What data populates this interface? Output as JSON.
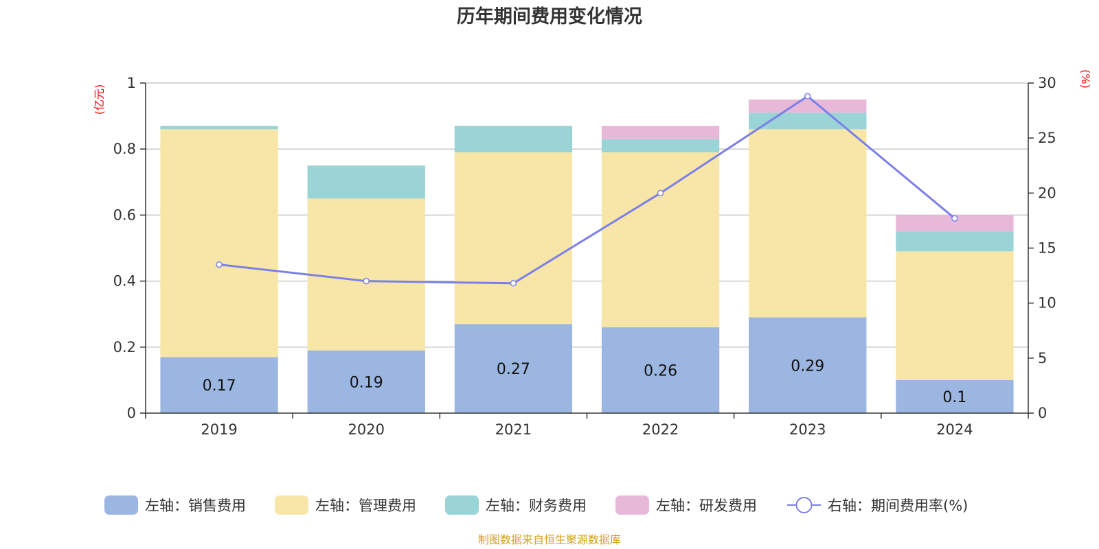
{
  "chart_data": {
    "type": "bar",
    "title": "历年期间费用变化情况",
    "categories": [
      "2019",
      "2020",
      "2021",
      "2022",
      "2023",
      "2024"
    ],
    "y_left": {
      "unit": "(亿元)",
      "ylim": [
        0,
        1
      ],
      "ticks": [
        "0",
        "0.2",
        "0.4",
        "0.6",
        "0.8",
        "1"
      ]
    },
    "y_right": {
      "unit": "(%)",
      "ylim": [
        0,
        30
      ],
      "ticks": [
        "0",
        "5",
        "10",
        "15",
        "20",
        "25",
        "30"
      ]
    },
    "series": [
      {
        "name": "左轴：销售费用",
        "type": "bar",
        "stack": true,
        "axis": "left",
        "color": "#9bb6e0",
        "values": [
          0.17,
          0.19,
          0.27,
          0.26,
          0.29,
          0.1
        ],
        "labels": [
          "0.17",
          "0.19",
          "0.27",
          "0.26",
          "0.29",
          "0.1"
        ]
      },
      {
        "name": "左轴：管理费用",
        "type": "bar",
        "stack": true,
        "axis": "left",
        "color": "#f7e6a8",
        "values": [
          0.69,
          0.46,
          0.52,
          0.53,
          0.57,
          0.39
        ]
      },
      {
        "name": "左轴：财务费用",
        "type": "bar",
        "stack": true,
        "axis": "left",
        "color": "#9ad4d6",
        "values": [
          0.01,
          0.1,
          0.08,
          0.04,
          0.05,
          0.06
        ]
      },
      {
        "name": "左轴：研发费用",
        "type": "bar",
        "stack": true,
        "axis": "left",
        "color": "#e8b8d9",
        "values": [
          0.0,
          0.0,
          0.0,
          0.04,
          0.04,
          0.05
        ]
      },
      {
        "name": "右轴：期间费用率(%)",
        "type": "line",
        "axis": "right",
        "color": "#7b7fe8",
        "values": [
          13.5,
          12.0,
          11.8,
          20.0,
          28.8,
          17.7
        ]
      }
    ],
    "grid": true,
    "legend": "bottom"
  },
  "source": "制图数据来自恒生聚源数据库"
}
